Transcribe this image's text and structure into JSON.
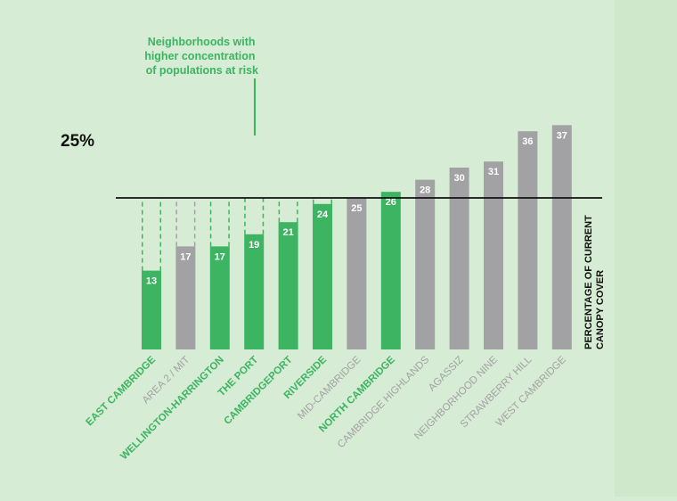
{
  "chart_data": {
    "type": "bar",
    "categories": [
      "EAST CAMBRIDGE",
      "AREA 2 / MIT",
      "WELLINGTON-HARRINGTON",
      "THE PORT",
      "CAMBRIDGEPORT",
      "RIVERSIDE",
      "MID-CAMBRIDGE",
      "NORTH CAMBRIDGE",
      "CAMBRIDGE HIGHLANDS",
      "AGASSIZ",
      "NEIGHBORHOOD NINE",
      "STRAWBERRY HILL",
      "WEST CAMBRIDGE"
    ],
    "values": [
      13,
      17,
      17,
      19,
      21,
      24,
      25,
      26,
      28,
      30,
      31,
      36,
      37
    ],
    "at_risk": [
      true,
      false,
      true,
      true,
      true,
      true,
      false,
      true,
      false,
      false,
      false,
      false,
      false
    ],
    "target": 25,
    "target_label": "25%",
    "ylim": [
      0,
      37
    ],
    "ylabel": "PERCENTAGE OF CURRENT CANOPY COVER",
    "ylabel_lines": [
      "PERCENTAGE OF CURRENT",
      "CANOPY COVER"
    ],
    "annotation": "Neighborhoods with higher concentration of populations at risk",
    "annotation_lines": [
      "Neighborhoods with",
      "higher concentration",
      "of populations at risk"
    ],
    "colors": {
      "at_risk": "#3cb462",
      "other": "#a2a2a4",
      "background": "#d6ecd4",
      "annotation": "#3cb462",
      "label_other": "#a2a2a4"
    }
  }
}
